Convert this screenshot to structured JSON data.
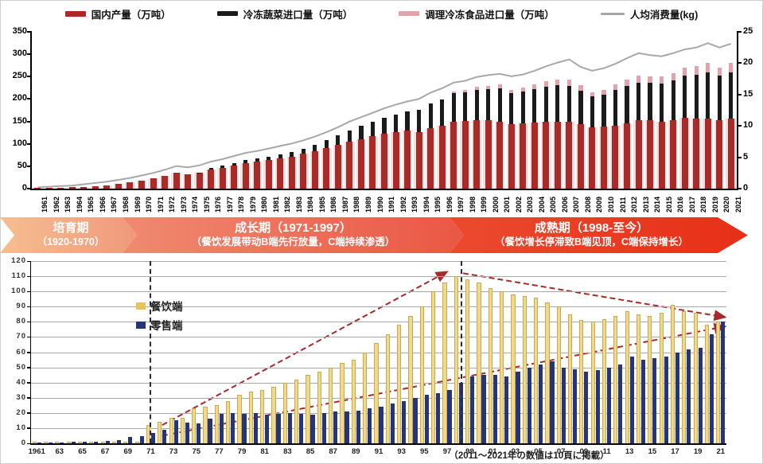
{
  "legend_top": [
    {
      "label": "国内产量（万吨）",
      "color": "#B02622",
      "type": "bar",
      "sw_w": 26,
      "sw_h": 7
    },
    {
      "label": "冷冻蔬菜进口量（万吨）",
      "color": "#1B1B1B",
      "type": "bar",
      "sw_w": 26,
      "sw_h": 6
    },
    {
      "label": "调理冷冻食品进口量（万吨）",
      "color": "#E4A3AC",
      "type": "bar",
      "sw_w": 26,
      "sw_h": 6
    },
    {
      "label": "人均消费量(kg)",
      "color": "#A8A8A8",
      "type": "line",
      "sw_w": 30,
      "sw_h": 3
    }
  ],
  "banner": {
    "phases": [
      {
        "title": "培育期",
        "subtitle": "（1920-1970）",
        "color_from": "#F6BE90",
        "color_to": "#F0997B"
      },
      {
        "title": "成长期（1971-1997）",
        "subtitle": "（餐饮发展带动B端先行放量，C端持续渗透）",
        "color_from": "#EF8A70",
        "color_to": "#EA5744"
      },
      {
        "title": "成熟期（1998-至今）",
        "subtitle": "（餐饮增长停滞致B端见顶，C端保持增长）",
        "color_from": "#EB4A2F",
        "color_to": "#E72F17"
      }
    ]
  },
  "footnote": "（2011～2021年の数値は10頁に掲載）",
  "chart_data": [
    {
      "type": "bar",
      "subtype": "stacked-bars-plus-line",
      "ylim_left": [
        0,
        350
      ],
      "ylim_right": [
        0,
        25
      ],
      "y_left_ticks": [
        0,
        50,
        100,
        150,
        200,
        250,
        300,
        350
      ],
      "y_right_ticks": [
        0,
        5,
        10,
        15,
        20,
        25
      ],
      "grid": false,
      "legend_position": "top",
      "categories": [
        1961,
        1962,
        1963,
        1964,
        1965,
        1966,
        1967,
        1968,
        1969,
        1970,
        1971,
        1972,
        1973,
        1974,
        1975,
        1976,
        1977,
        1978,
        1979,
        1980,
        1981,
        1982,
        1983,
        1984,
        1985,
        1986,
        1987,
        1988,
        1989,
        1990,
        1991,
        1992,
        1993,
        1994,
        1995,
        1996,
        1997,
        1998,
        1999,
        2000,
        2001,
        2002,
        2003,
        2004,
        2005,
        2006,
        2007,
        2008,
        2009,
        2010,
        2011,
        2012,
        2013,
        2014,
        2015,
        2016,
        2017,
        2018,
        2019,
        2020,
        2021
      ],
      "series": [
        {
          "name": "国内产量（万吨）",
          "axis": "left",
          "color": "#A92B28",
          "halo_color": "#F5DFDF",
          "values": [
            1,
            1,
            2,
            3,
            4,
            6,
            8,
            11,
            14,
            18,
            23,
            29,
            36,
            32,
            35,
            43,
            47,
            52,
            57,
            60,
            64,
            68,
            72,
            78,
            84,
            91,
            98,
            105,
            111,
            117,
            123,
            127,
            129,
            127,
            135,
            140,
            150,
            151,
            153,
            152,
            149,
            144,
            145,
            147,
            149,
            150,
            150,
            144,
            137,
            139,
            141,
            146,
            152,
            153,
            150,
            153,
            158,
            156,
            157,
            153,
            156
          ]
        },
        {
          "name": "冷冻蔬菜进口量（万吨）",
          "axis": "left",
          "color": "#1B1B1B",
          "values": [
            0,
            0,
            0,
            0,
            0,
            0,
            0,
            0,
            0,
            0,
            0,
            0,
            0,
            0,
            1,
            3,
            4,
            5,
            7,
            7,
            8,
            9,
            10,
            11,
            13,
            17,
            21,
            25,
            29,
            32,
            35,
            39,
            43,
            49,
            55,
            59,
            63,
            64,
            68,
            71,
            75,
            69,
            71,
            75,
            79,
            81,
            79,
            75,
            69,
            71,
            79,
            83,
            85,
            83,
            85,
            89,
            95,
            99,
            103,
            99,
            104
          ]
        },
        {
          "name": "调理冷冻食品进口量（万吨）",
          "axis": "left",
          "color": "#E4A3AC",
          "values": [
            0,
            0,
            0,
            0,
            0,
            0,
            0,
            0,
            0,
            0,
            0,
            0,
            0,
            0,
            0,
            0,
            0,
            0,
            0,
            0,
            0,
            0,
            0,
            0,
            0,
            0,
            0,
            0,
            0,
            0,
            0,
            0,
            0,
            0,
            0,
            0,
            4,
            5,
            6,
            7,
            8,
            8,
            9,
            10,
            12,
            13,
            14,
            12,
            10,
            11,
            13,
            14,
            15,
            15,
            15,
            16,
            17,
            18,
            20,
            18,
            20
          ]
        }
      ],
      "line_series": {
        "name": "人均消费量(kg)",
        "axis": "right",
        "color": "#A8A8A8",
        "values": [
          0.2,
          0.3,
          0.4,
          0.5,
          0.7,
          0.9,
          1.1,
          1.4,
          1.7,
          2.1,
          2.5,
          3.0,
          3.6,
          3.4,
          3.7,
          4.3,
          4.7,
          5.2,
          5.7,
          6.0,
          6.4,
          6.8,
          7.2,
          7.7,
          8.3,
          9.0,
          9.8,
          10.7,
          11.4,
          12.1,
          12.8,
          13.4,
          13.9,
          14.3,
          15.3,
          16.0,
          16.9,
          17.2,
          17.8,
          18.1,
          18.3,
          17.9,
          18.2,
          18.8,
          19.5,
          20.1,
          20.6,
          19.4,
          18.8,
          19.2,
          19.9,
          20.8,
          21.6,
          21.3,
          21.1,
          21.6,
          22.2,
          22.5,
          23.2,
          22.5,
          23.1
        ]
      }
    },
    {
      "type": "bar",
      "subtype": "grouped-bars",
      "ylim": [
        0,
        120
      ],
      "y_ticks": [
        0,
        10,
        20,
        30,
        40,
        50,
        60,
        70,
        80,
        90,
        100,
        110,
        120
      ],
      "grid": true,
      "legend": [
        {
          "label": "餐饮端",
          "color": "#E8C25A"
        },
        {
          "label": "零售端",
          "color": "#263577"
        }
      ],
      "categories": [
        1961,
        1962,
        1963,
        1964,
        1965,
        1966,
        1967,
        1968,
        1969,
        1970,
        1971,
        1972,
        1973,
        1974,
        1975,
        1976,
        1977,
        1978,
        1979,
        1980,
        1981,
        1982,
        1983,
        1984,
        1985,
        1986,
        1987,
        1988,
        1989,
        1990,
        1991,
        1992,
        1993,
        1994,
        1995,
        1996,
        1997,
        1998,
        1999,
        2000,
        2001,
        2002,
        2003,
        2004,
        2005,
        2006,
        2007,
        2008,
        2009,
        2010,
        2011,
        2012,
        2013,
        2014,
        2015,
        2016,
        2017,
        2018,
        2019,
        2020,
        2021
      ],
      "x_tick_labels": [
        "1961",
        "63",
        "65",
        "67",
        "69",
        "71",
        "73",
        "75",
        "77",
        "79",
        "81",
        "83",
        "85",
        "87",
        "89",
        "91",
        "93",
        "95",
        "97",
        "99",
        "01",
        "03",
        "05",
        "07",
        "09",
        "11",
        "13",
        "15",
        "17",
        "19",
        "21"
      ],
      "series": [
        {
          "name": "餐饮端",
          "color": "#F0D98F",
          "values": [
            1,
            1,
            1,
            1,
            1,
            1,
            1,
            1,
            1,
            1,
            12,
            14,
            17,
            17,
            23,
            24,
            25,
            28,
            32,
            34,
            35,
            37,
            40,
            42,
            45,
            47,
            50,
            53,
            55,
            60,
            66,
            72,
            78,
            84,
            90,
            100,
            106,
            110,
            108,
            106,
            102,
            100,
            98,
            97,
            96,
            93,
            90,
            85,
            81,
            80,
            82,
            84,
            87,
            85,
            84,
            86,
            91,
            87,
            86,
            78,
            80
          ]
        },
        {
          "name": "零售端",
          "color": "#263577",
          "values": [
            0.5,
            0.5,
            0.5,
            1,
            1,
            1,
            1.5,
            2,
            4,
            5,
            7,
            9,
            15,
            13.5,
            13,
            16.5,
            19.5,
            20,
            19.5,
            20,
            19,
            19.5,
            20,
            19.5,
            19,
            20,
            21,
            21,
            21.5,
            23,
            24,
            26,
            28,
            30,
            32,
            33,
            35,
            40,
            44,
            45,
            45,
            44,
            47,
            50,
            52,
            54,
            50,
            49,
            47,
            48,
            50,
            52,
            57,
            55,
            56,
            57,
            60,
            62,
            63,
            72,
            80
          ]
        }
      ],
      "dividers": [
        1970.9,
        1998.2
      ],
      "arrows": [
        {
          "from": [
            1972,
            12
          ],
          "to": [
            1997,
            113
          ]
        },
        {
          "from": [
            1972,
            5
          ],
          "to": [
            2021.4,
            77
          ]
        },
        {
          "from": [
            1998.4,
            112
          ],
          "to": [
            2021.4,
            83
          ]
        }
      ],
      "arrow_color": "#A52A2A"
    }
  ]
}
